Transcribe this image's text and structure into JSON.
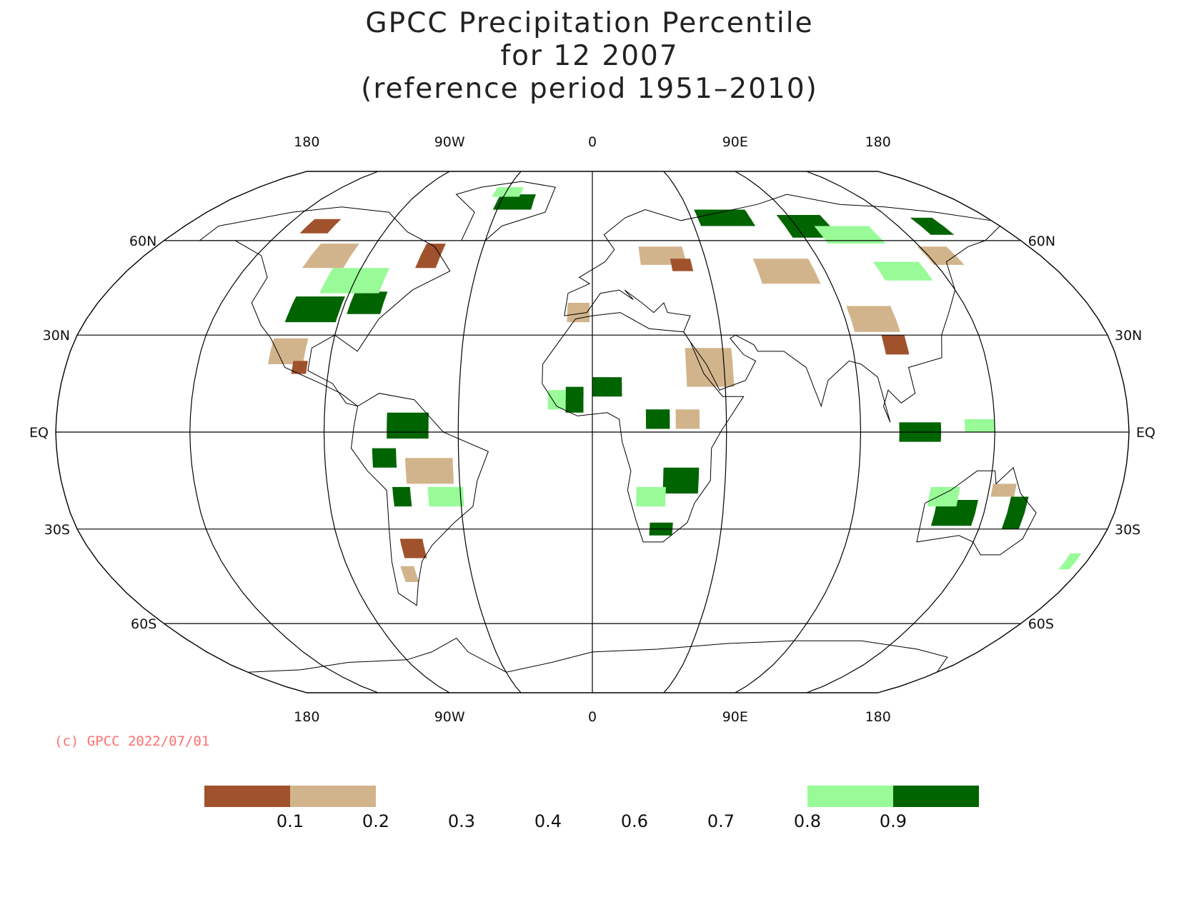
{
  "title": {
    "line1": "GPCC Precipitation Percentile",
    "line2": "for 12 2007",
    "line3": "(reference period 1951–2010)"
  },
  "axes": {
    "lon_labels": [
      "180",
      "90W",
      "0",
      "90E",
      "180"
    ],
    "lat_labels_left": [
      "60N",
      "30N",
      "EQ",
      "30S",
      "60S"
    ],
    "lat_labels_right": [
      "60N",
      "30N",
      "EQ",
      "30S",
      "60S"
    ]
  },
  "credit": "(c) GPCC 2022/07/01",
  "legend": {
    "ticks": [
      "0.1",
      "0.2",
      "0.3",
      "0.4",
      "0.6",
      "0.7",
      "0.8",
      "0.9"
    ],
    "colors": {
      "below_0_1": "#a0522d",
      "from_0_1_to_0_2": "#d2b48c",
      "from_0_8_to_0_9": "#98fb98",
      "above_0_9": "#006400"
    }
  },
  "map_data": {
    "projection": "Robinson",
    "central_meridian": 0,
    "graticule": {
      "lon_step": 45,
      "lat_lines": [
        60,
        30,
        0,
        -30,
        -60
      ]
    },
    "regions": [
      {
        "class": "p90",
        "lon": -100,
        "lat": 38,
        "dlon": 18,
        "dlat": 8
      },
      {
        "class": "p90",
        "lon": -82,
        "lat": 40,
        "dlon": 12,
        "dlat": 7
      },
      {
        "class": "p80",
        "lon": -90,
        "lat": 47,
        "dlon": 22,
        "dlat": 8
      },
      {
        "class": "p10",
        "lon": -120,
        "lat": 65,
        "dlon": 12,
        "dlat": 5
      },
      {
        "class": "p20",
        "lon": -105,
        "lat": 55,
        "dlon": 16,
        "dlat": 8
      },
      {
        "class": "p10",
        "lon": -65,
        "lat": 55,
        "dlon": 8,
        "dlat": 8
      },
      {
        "class": "p90",
        "lon": -38,
        "lat": 74,
        "dlon": 18,
        "dlat": 6
      },
      {
        "class": "p80",
        "lon": -44,
        "lat": 78,
        "dlon": 14,
        "dlat": 4
      },
      {
        "class": "p20",
        "lon": -105,
        "lat": 25,
        "dlon": 12,
        "dlat": 8
      },
      {
        "class": "p10",
        "lon": -100,
        "lat": 20,
        "dlon": 5,
        "dlat": 4
      },
      {
        "class": "p90",
        "lon": -62,
        "lat": 2,
        "dlon": 14,
        "dlat": 8
      },
      {
        "class": "p90",
        "lon": -70,
        "lat": -8,
        "dlon": 8,
        "dlat": 6
      },
      {
        "class": "p20",
        "lon": -55,
        "lat": -12,
        "dlon": 16,
        "dlat": 8
      },
      {
        "class": "p80",
        "lon": -50,
        "lat": -20,
        "dlon": 12,
        "dlat": 6
      },
      {
        "class": "p90",
        "lon": -65,
        "lat": -20,
        "dlon": 6,
        "dlat": 6
      },
      {
        "class": "p10",
        "lon": -64,
        "lat": -36,
        "dlon": 8,
        "dlat": 6
      },
      {
        "class": "p20",
        "lon": -68,
        "lat": -44,
        "dlon": 5,
        "dlat": 5
      },
      {
        "class": "p90",
        "lon": 5,
        "lat": 14,
        "dlon": 10,
        "dlat": 6
      },
      {
        "class": "p90",
        "lon": -6,
        "lat": 10,
        "dlon": 6,
        "dlat": 8
      },
      {
        "class": "p80",
        "lon": -12,
        "lat": 10,
        "dlon": 6,
        "dlat": 6
      },
      {
        "class": "p90",
        "lon": 22,
        "lat": 4,
        "dlon": 8,
        "dlat": 6
      },
      {
        "class": "p20",
        "lon": 32,
        "lat": 4,
        "dlon": 8,
        "dlat": 6
      },
      {
        "class": "p90",
        "lon": 30,
        "lat": -15,
        "dlon": 12,
        "dlat": 8
      },
      {
        "class": "p80",
        "lon": 20,
        "lat": -20,
        "dlon": 10,
        "dlat": 6
      },
      {
        "class": "p90",
        "lon": 24,
        "lat": -30,
        "dlon": 8,
        "dlat": 4
      },
      {
        "class": "p20",
        "lon": 40,
        "lat": 20,
        "dlon": 16,
        "dlat": 12
      },
      {
        "class": "p20",
        "lon": 28,
        "lat": 55,
        "dlon": 18,
        "dlat": 6
      },
      {
        "class": "p10",
        "lon": 35,
        "lat": 52,
        "dlon": 8,
        "dlat": 4
      },
      {
        "class": "p20",
        "lon": -5,
        "lat": 37,
        "dlon": 8,
        "dlat": 6
      },
      {
        "class": "p90",
        "lon": 60,
        "lat": 68,
        "dlon": 24,
        "dlat": 6
      },
      {
        "class": "p90",
        "lon": 95,
        "lat": 65,
        "dlon": 20,
        "dlat": 8
      },
      {
        "class": "p80",
        "lon": 110,
        "lat": 62,
        "dlon": 24,
        "dlat": 6
      },
      {
        "class": "p20",
        "lon": 75,
        "lat": 50,
        "dlon": 22,
        "dlat": 8
      },
      {
        "class": "p80",
        "lon": 120,
        "lat": 50,
        "dlon": 18,
        "dlat": 6
      },
      {
        "class": "p20",
        "lon": 140,
        "lat": 55,
        "dlon": 12,
        "dlat": 6
      },
      {
        "class": "p90",
        "lon": 150,
        "lat": 65,
        "dlon": 10,
        "dlat": 6
      },
      {
        "class": "p10",
        "lon": 105,
        "lat": 27,
        "dlon": 8,
        "dlat": 6
      },
      {
        "class": "p20",
        "lon": 100,
        "lat": 35,
        "dlon": 16,
        "dlat": 8
      },
      {
        "class": "p90",
        "lon": 110,
        "lat": 0,
        "dlon": 14,
        "dlat": 6
      },
      {
        "class": "p80",
        "lon": 130,
        "lat": 2,
        "dlon": 10,
        "dlat": 4
      },
      {
        "class": "p90",
        "lon": 125,
        "lat": -25,
        "dlon": 14,
        "dlat": 8
      },
      {
        "class": "p80",
        "lon": 120,
        "lat": -20,
        "dlon": 10,
        "dlat": 6
      },
      {
        "class": "p90",
        "lon": 146,
        "lat": -25,
        "dlon": 6,
        "dlat": 10
      },
      {
        "class": "p20",
        "lon": 140,
        "lat": -18,
        "dlon": 8,
        "dlat": 4
      },
      {
        "class": "p80",
        "lon": 174,
        "lat": -40,
        "dlon": 4,
        "dlat": 5
      }
    ]
  }
}
